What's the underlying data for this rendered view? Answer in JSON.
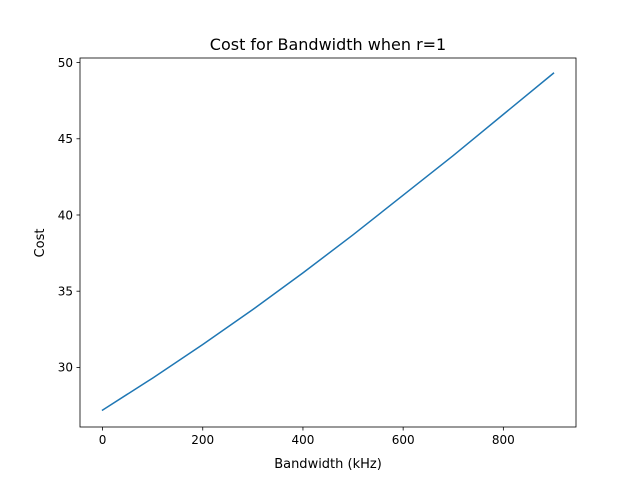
{
  "chart_data": {
    "type": "line",
    "title": "Cost for Bandwidth when r=1",
    "xlabel": "Bandwidth (kHz)",
    "ylabel": "Cost",
    "xlim": [
      -45,
      945
    ],
    "ylim": [
      26.09,
      50.3
    ],
    "xticks": [
      0,
      200,
      400,
      600,
      800
    ],
    "yticks": [
      30,
      35,
      40,
      45,
      50
    ],
    "grid": false,
    "series": [
      {
        "color": "#1f77b4",
        "x": [
          0,
          100,
          200,
          300,
          400,
          500,
          600,
          700,
          800,
          900
        ],
        "y": [
          27.2,
          29.3,
          31.5,
          33.8,
          36.2,
          38.7,
          41.3,
          43.9,
          46.6,
          49.3
        ]
      }
    ]
  }
}
